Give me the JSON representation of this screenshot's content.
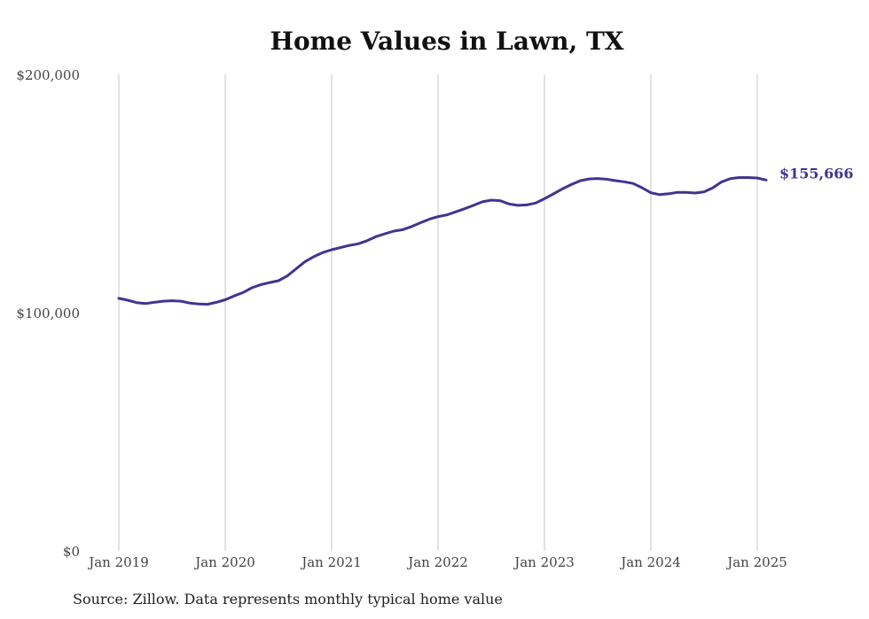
{
  "chart_data": {
    "type": "line",
    "title": "Home Values in Lawn, TX",
    "source": "Source: Zillow. Data represents monthly typical home value",
    "xlabel": "",
    "ylabel": "",
    "ylim": [
      0,
      200000
    ],
    "yticks": [
      0,
      100000,
      200000
    ],
    "ytick_labels": [
      "$0",
      "$100,000",
      "$200,000"
    ],
    "xtick_labels": [
      "Jan 2019",
      "Jan 2020",
      "Jan 2021",
      "Jan 2022",
      "Jan 2023",
      "Jan 2024",
      "Jan 2025"
    ],
    "x_start": "Jan 2019",
    "grid": "vertical",
    "line_color": "#3f3590",
    "end_label": "$155,666",
    "series": [
      {
        "values": [
          106000,
          105200,
          104200,
          103800,
          104300,
          104800,
          105000,
          104800,
          104000,
          103600,
          103500,
          104300,
          105400,
          107000,
          108400,
          110400,
          111700,
          112600,
          113400,
          115400,
          118400,
          121400,
          123500,
          125200,
          126400,
          127300,
          128200,
          128900,
          130200,
          131900,
          133100,
          134200,
          134800,
          136100,
          137700,
          139200,
          140300,
          141000,
          142300,
          143600,
          145000,
          146500,
          147200,
          147000,
          145600,
          145000,
          145200,
          146000,
          147800,
          149800,
          151900,
          153700,
          155300,
          156100,
          156300,
          156000,
          155400,
          154900,
          154200,
          152400,
          150300,
          149500,
          149900,
          150500,
          150500,
          150200,
          150700,
          152400,
          154900,
          156300,
          156700,
          156700,
          156500,
          155666
        ]
      }
    ]
  }
}
